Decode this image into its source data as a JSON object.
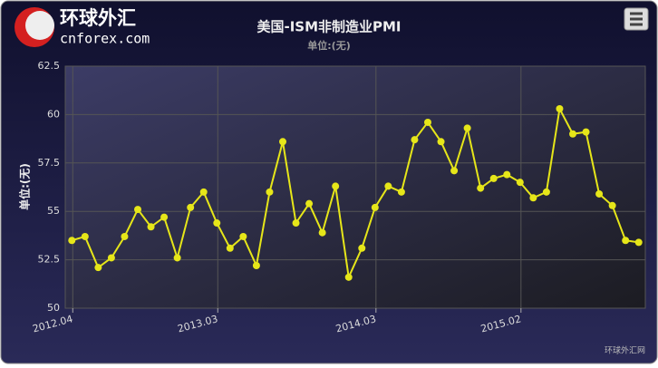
{
  "logo": {
    "name": "环球外汇",
    "site": "cnforex.com"
  },
  "credits": "环球外汇网",
  "chart_data": {
    "type": "line",
    "title": "美国-ISM非制造业PMI",
    "subtitle": "单位:(无)",
    "y_label": "单位:(无)",
    "categories": [
      null,
      "2012.04",
      null,
      null,
      null,
      null,
      null,
      null,
      null,
      null,
      null,
      null,
      "2013.03",
      null,
      null,
      null,
      null,
      null,
      null,
      null,
      null,
      null,
      null,
      null,
      "2014.03",
      null,
      null,
      null,
      null,
      null,
      null,
      null,
      null,
      null,
      null,
      "2015.02",
      null,
      null,
      null,
      null,
      null,
      null,
      null,
      null
    ],
    "series": [
      {
        "name": "美国-ISM非制造业PMI",
        "color": "#e6e619",
        "values": [
          53.5,
          53.7,
          52.1,
          52.6,
          53.7,
          55.1,
          54.2,
          54.7,
          52.6,
          55.2,
          56.0,
          54.4,
          53.1,
          53.7,
          52.2,
          56.0,
          58.6,
          54.4,
          55.4,
          53.9,
          56.3,
          51.6,
          53.1,
          55.2,
          56.3,
          56.0,
          58.7,
          59.6,
          58.6,
          57.1,
          59.3,
          56.2,
          56.7,
          56.9,
          56.5,
          55.7,
          56.0,
          60.3,
          59.0,
          59.1,
          55.9,
          55.3,
          53.5,
          53.4
        ]
      }
    ],
    "ylim": [
      50,
      62.5
    ],
    "yticks": [
      50,
      52.5,
      55,
      57.5,
      60,
      62.5
    ],
    "grid": true
  }
}
